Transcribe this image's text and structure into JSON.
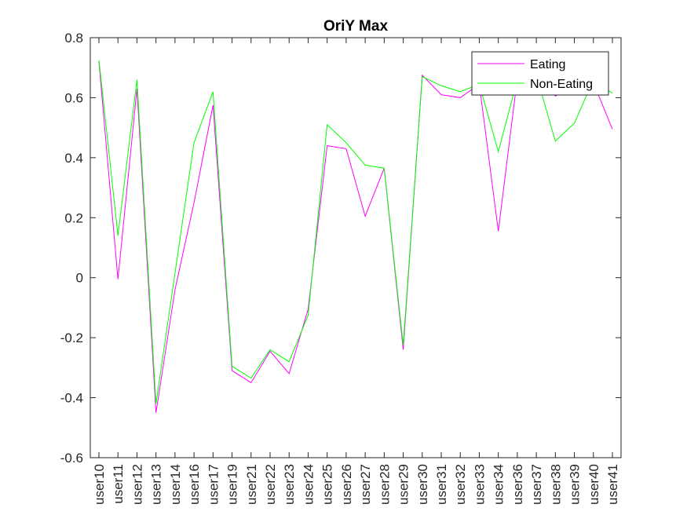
{
  "chart_data": {
    "type": "line",
    "title": "OriY Max",
    "xlabel": "",
    "ylabel": "",
    "categories": [
      "user10",
      "user11",
      "user12",
      "user13",
      "user14",
      "user16",
      "user17",
      "user19",
      "user21",
      "user22",
      "user23",
      "user24",
      "user25",
      "user26",
      "user27",
      "user28",
      "user29",
      "user30",
      "user31",
      "user32",
      "user33",
      "user34",
      "user36",
      "user37",
      "user38",
      "user39",
      "user40",
      "user41"
    ],
    "ylim": [
      -0.6,
      0.8
    ],
    "yticks": [
      "-0.6",
      "-0.4",
      "-0.2",
      "0",
      "0.2",
      "0.4",
      "0.6",
      "0.8"
    ],
    "ytick_values": [
      -0.6,
      -0.4,
      -0.2,
      0,
      0.2,
      0.4,
      0.6,
      0.8
    ],
    "grid": false,
    "legend_position": "top-right",
    "series": [
      {
        "name": "Eating",
        "color": "#ff00ff",
        "values": [
          0.72,
          -0.005,
          0.63,
          -0.45,
          -0.04,
          0.25,
          0.575,
          -0.31,
          -0.35,
          -0.245,
          -0.32,
          -0.105,
          0.44,
          0.43,
          0.205,
          0.365,
          -0.24,
          0.675,
          0.61,
          0.6,
          0.645,
          0.155,
          0.665,
          0.68,
          0.605,
          0.645,
          0.65,
          0.495
        ]
      },
      {
        "name": "Non-Eating",
        "color": "#00ff00",
        "values": [
          0.725,
          0.14,
          0.66,
          -0.42,
          0.015,
          0.45,
          0.62,
          -0.295,
          -0.335,
          -0.24,
          -0.28,
          -0.125,
          0.51,
          0.45,
          0.375,
          0.365,
          -0.225,
          0.67,
          0.64,
          0.62,
          0.645,
          0.42,
          0.66,
          0.675,
          0.455,
          0.515,
          0.66,
          0.615
        ]
      }
    ]
  }
}
